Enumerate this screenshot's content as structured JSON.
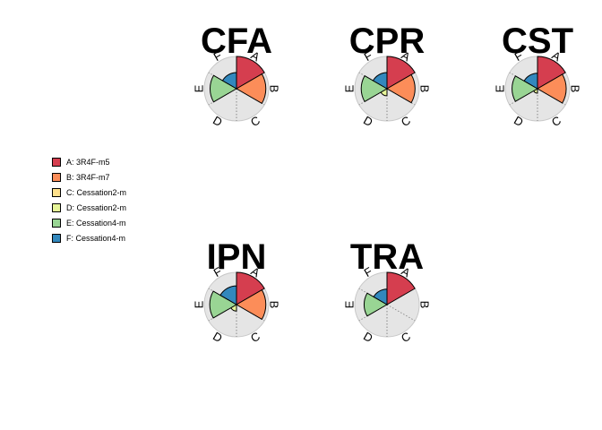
{
  "chart_data": {
    "type": "radial-bar",
    "categories": [
      "A",
      "B",
      "C",
      "D",
      "E",
      "F"
    ],
    "legend_labels": [
      "A: 3R4F-m5",
      "B: 3R4F-m7",
      "C: Cessation2-m",
      "D: Cessation2-m",
      "E: Cessation4-m",
      "F: Cessation4-m"
    ],
    "colors": [
      "#D53E4F",
      "#FC8D59",
      "#FEE08B",
      "#E6F598",
      "#99D594",
      "#3288BD"
    ],
    "max_value": 1.0,
    "panels": [
      {
        "title": "CFA",
        "values": [
          1.0,
          0.91,
          0.0,
          0.0,
          0.82,
          0.5
        ]
      },
      {
        "title": "CPR",
        "values": [
          1.0,
          0.87,
          0.0,
          0.22,
          0.8,
          0.5
        ]
      },
      {
        "title": "CST",
        "values": [
          1.0,
          0.89,
          0.0,
          0.14,
          0.79,
          0.48
        ]
      },
      {
        "title": "IPN",
        "values": [
          1.0,
          0.91,
          0.0,
          0.2,
          0.83,
          0.58
        ]
      },
      {
        "title": "TRA",
        "values": [
          1.0,
          0.0,
          0.0,
          0.0,
          0.71,
          0.48
        ]
      }
    ],
    "legend_position": "left",
    "grid": false
  }
}
